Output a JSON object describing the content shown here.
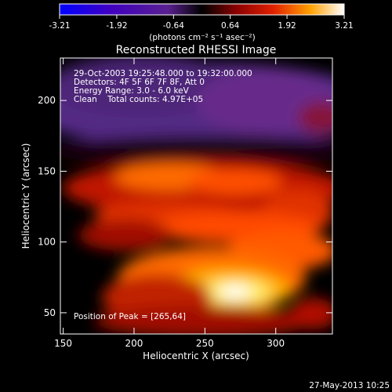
{
  "chart_data": {
    "type": "heatmap",
    "title": "Reconstructed RHESSI Image",
    "xlabel": "Heliocentric X (arcsec)",
    "ylabel": "Heliocentric Y (arcsec)",
    "xlim": [
      148,
      340
    ],
    "ylim": [
      35,
      230
    ],
    "x_ticks": [
      150,
      200,
      250,
      300
    ],
    "y_ticks": [
      50,
      100,
      150,
      200
    ],
    "colorbar": {
      "min": -3.21,
      "max": 3.21,
      "ticks": [
        "-3.21",
        "-1.92",
        "-0.64",
        "0.64",
        "1.92",
        "3.21"
      ],
      "unit_label": "(photons cm⁻² s⁻¹ asec⁻²)"
    },
    "annotations": [
      "29-Oct-2003 19:25:48.000 to 19:32:00.000",
      "Detectors: 4F 5F 6F 7F 8F, Att 0",
      "Energy Range: 3.0 - 6.0 keV",
      "Clean    Total counts: 4.97E+05"
    ],
    "peak_label": "Position of Peak = [265,64]",
    "peak": [
      265,
      64
    ],
    "footer": "27-May-2013 10:25",
    "colors": {
      "background": "#000000",
      "text": "#ffffff",
      "colormap": [
        "#0000ff",
        "#3a00c8",
        "#5a1f96",
        "#4a2068",
        "#2a0a2a",
        "#6a0000",
        "#cc1500",
        "#ff5a00",
        "#ffb000",
        "#ffee60",
        "#ffffff"
      ]
    }
  }
}
